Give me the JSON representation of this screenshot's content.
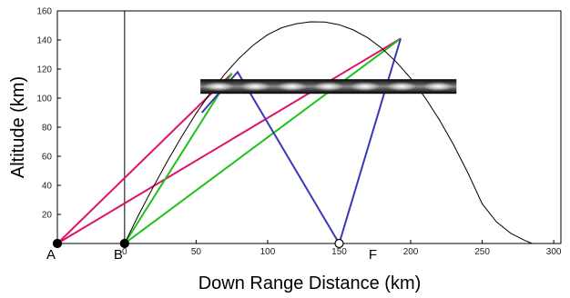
{
  "chart_data": {
    "type": "line",
    "title": "",
    "xlabel": "Down Range Distance (km)",
    "ylabel": "Altitude (km)",
    "xlim": [
      -47,
      305
    ],
    "ylim": [
      0,
      160
    ],
    "xticks": [
      0,
      50,
      100,
      150,
      200,
      250,
      300
    ],
    "yticks": [
      20,
      40,
      60,
      80,
      100,
      120,
      140,
      160
    ],
    "grid": false,
    "legend": "none",
    "vertical_line_x": 0,
    "trajectory": {
      "x": [
        0,
        10,
        20,
        30,
        40,
        50,
        60,
        70,
        80,
        90,
        100,
        110,
        120,
        130,
        140,
        150,
        160,
        170,
        180,
        190,
        200,
        210,
        220,
        230,
        240,
        250,
        260,
        270,
        280,
        285
      ],
      "y": [
        0,
        20,
        38.9,
        56.8,
        73.7,
        89.5,
        103.7,
        116.5,
        127.4,
        136.5,
        143.6,
        148.5,
        151.2,
        152.5,
        152.3,
        150.5,
        146.9,
        141.5,
        134.1,
        124.8,
        113.6,
        100.4,
        85.1,
        67.8,
        48.5,
        27.3,
        14.8,
        7.0,
        2.0,
        0
      ],
      "color": "#000000"
    },
    "points": [
      {
        "label": "A",
        "x": -47,
        "y": 0,
        "fill": "#000000"
      },
      {
        "label": "B",
        "x": 0,
        "y": 0,
        "fill": "#000000"
      },
      {
        "label": "F",
        "x": 150,
        "y": 0,
        "fill": "#ffffff"
      }
    ],
    "rays": [
      {
        "color": "#e0106a",
        "x": [
          -47,
          75
        ],
        "y": [
          0,
          117
        ]
      },
      {
        "color": "#e0106a",
        "x": [
          -47,
          193
        ],
        "y": [
          0,
          141
        ]
      },
      {
        "color": "#22c01a",
        "x": [
          0,
          75
        ],
        "y": [
          0,
          117
        ]
      },
      {
        "color": "#22c01a",
        "x": [
          0,
          193
        ],
        "y": [
          0,
          141
        ]
      },
      {
        "color": "#3a38b6",
        "x": [
          150,
          79,
          54
        ],
        "y": [
          0,
          118,
          90
        ]
      },
      {
        "color": "#3a38b6",
        "x": [
          150,
          193
        ],
        "y": [
          0,
          141
        ]
      }
    ],
    "layer_band": {
      "x_range": [
        53,
        232
      ],
      "y_range": [
        103,
        113
      ]
    }
  }
}
